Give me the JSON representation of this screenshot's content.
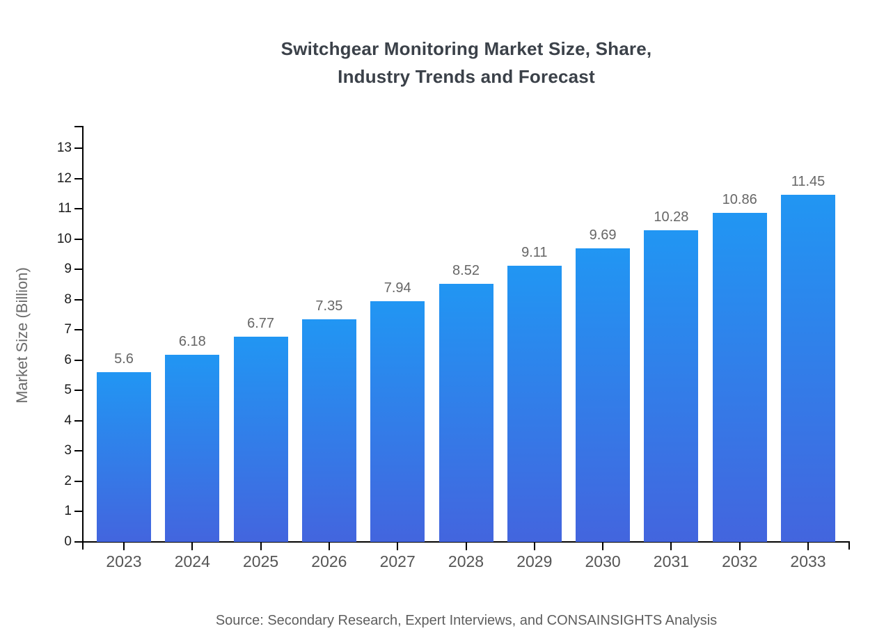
{
  "chart": {
    "title_lines": [
      "Switchgear Monitoring Market Size, Share,",
      "Industry Trends and Forecast"
    ],
    "ylabel": "Market Size (Billion)",
    "source": "Source: Secondary Research, Expert Interviews, and CONSAINSIGHTS Analysis"
  },
  "chart_data": {
    "type": "bar",
    "title": "Switchgear Monitoring Market Size, Share, Industry Trends and Forecast",
    "categories": [
      "2023",
      "2024",
      "2025",
      "2026",
      "2027",
      "2028",
      "2029",
      "2030",
      "2031",
      "2032",
      "2033"
    ],
    "values": [
      5.6,
      6.18,
      6.77,
      7.35,
      7.94,
      8.52,
      9.11,
      9.69,
      10.28,
      10.86,
      11.45
    ],
    "value_labels": [
      "5.6",
      "6.18",
      "6.77",
      "7.35",
      "7.94",
      "8.52",
      "9.11",
      "9.69",
      "10.28",
      "10.86",
      "11.45"
    ],
    "xlabel": "",
    "ylabel": "Market Size (Billion)",
    "ylim": [
      0,
      13
    ],
    "ytick_step": 1,
    "grid": false,
    "legend": false,
    "source": "Source: Secondary Research, Expert Interviews, and CONSAINSIGHTS Analysis"
  },
  "colors": {
    "bar_gradient_top": "#2196F3",
    "bar_gradient_bottom": "#4365DE",
    "axis": "#000000",
    "title_text": "#3B4149",
    "ytick_text": "#1A1A1A",
    "xtick_text": "#555555",
    "value_text": "#666666",
    "ylabel_text": "#6B6B6B",
    "source_text": "#5E5E5E"
  }
}
